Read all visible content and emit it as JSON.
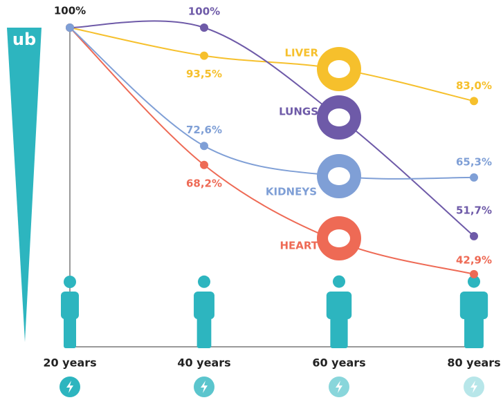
{
  "chart_data": {
    "type": "line",
    "logo": "ub",
    "categories": [
      "20 years",
      "40 years",
      "60 years",
      "80 years"
    ],
    "ylim": [
      40,
      100
    ],
    "series": [
      {
        "name": "HEART",
        "color": "#ee6a55",
        "values": [
          100,
          68.2,
          50.4,
          42.9
        ],
        "value_labels": [
          "100%",
          "68,2%",
          null,
          "42,9%"
        ]
      },
      {
        "name": "LIVER",
        "color": "#f6c02c",
        "values": [
          100,
          93.5,
          90.4,
          83.0
        ],
        "value_labels": [
          null,
          "93,5%",
          null,
          "83,0%"
        ]
      },
      {
        "name": "LUNGS",
        "color": "#6e5aa8",
        "values": [
          100,
          100,
          79.2,
          51.7
        ],
        "value_labels": [
          null,
          "100%",
          null,
          "51,7%"
        ]
      },
      {
        "name": "KIDNEYS",
        "color": "#7f9fd6",
        "values": [
          100,
          72.6,
          65.6,
          65.3
        ],
        "value_labels": [
          null,
          "72,6%",
          null,
          "65,3%"
        ]
      }
    ]
  }
}
